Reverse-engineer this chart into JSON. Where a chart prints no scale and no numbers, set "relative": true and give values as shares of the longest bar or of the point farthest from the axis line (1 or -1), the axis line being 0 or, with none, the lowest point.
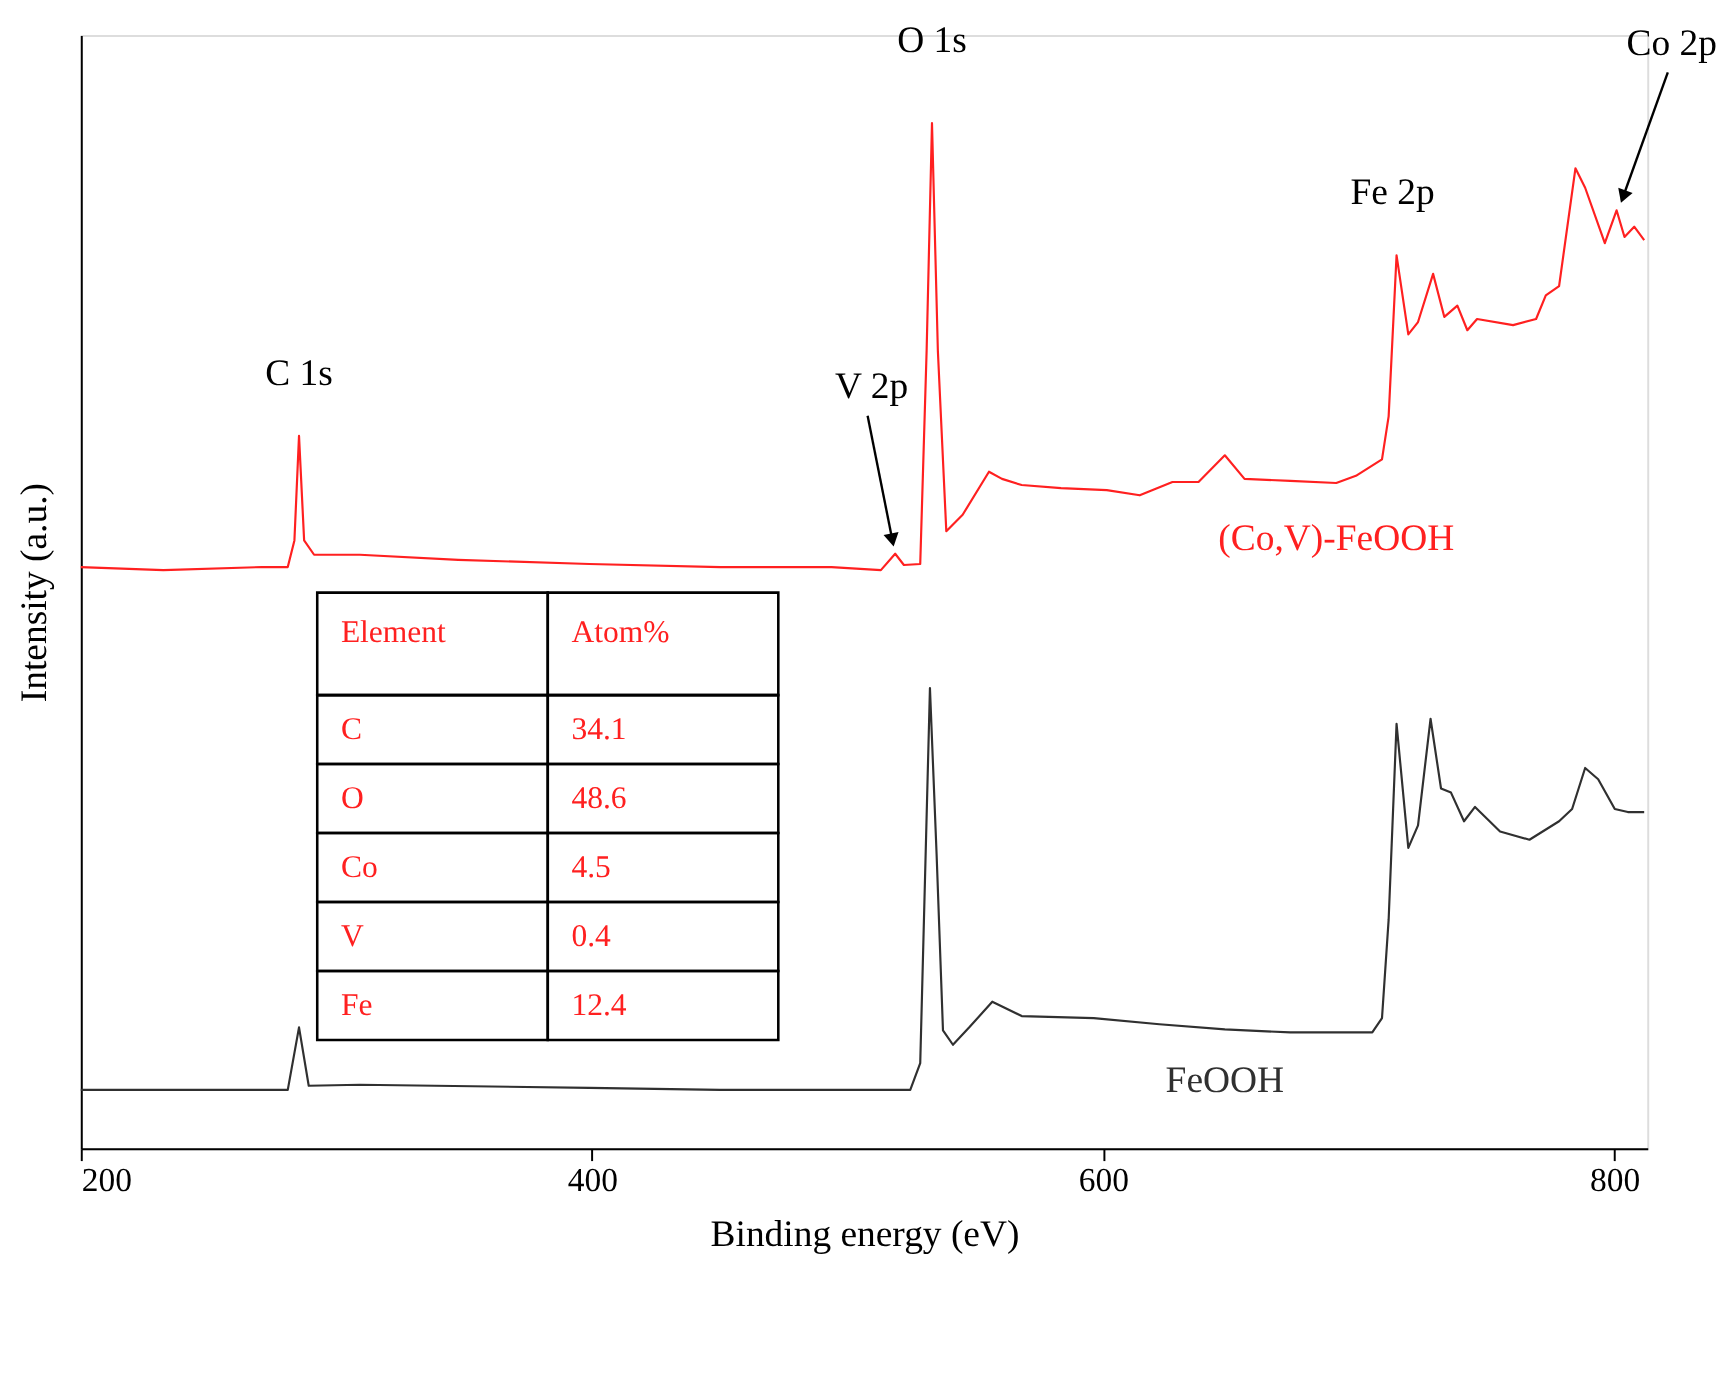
{
  "chart_data": {
    "type": "line",
    "relative": true,
    "xlabel": "Binding energy (eV)",
    "ylabel": "Intensity (a.u.)",
    "xlim": [
      200,
      813
    ],
    "xticks": [
      200,
      400,
      600,
      800
    ],
    "grid": false,
    "legend": false,
    "marker": "none",
    "line_style": "solid",
    "series": [
      {
        "name": "(Co,V)-FeOOH",
        "color": "#ff2020",
        "x": [
          200,
          232.3,
          270.8,
          281,
          283.6,
          285.4,
          287.4,
          291.3,
          309.2,
          347.7,
          399,
          450.3,
          493.8,
          513.1,
          518.7,
          522.1,
          528.5,
          531.0,
          533.1,
          535.4,
          538.7,
          545.1,
          555.4,
          560.5,
          568.2,
          583.6,
          601.5,
          614.4,
          627.2,
          637.4,
          647.7,
          655.4,
          673.3,
          691.3,
          699.0,
          709.2,
          711.8,
          714.9,
          719.5,
          723.3,
          729.2,
          733.6,
          738.7,
          742.6,
          746.4,
          760.5,
          769.5,
          773.3,
          778.5,
          784.9,
          788.7,
          796.4,
          801.0,
          804.1,
          807.9,
          811.8
        ],
        "values": [
          0.567,
          0.564,
          0.567,
          0.567,
          0.593,
          0.695,
          0.593,
          0.579,
          0.579,
          0.574,
          0.57,
          0.567,
          0.567,
          0.564,
          0.58,
          0.569,
          0.57,
          0.778,
          1.0,
          0.778,
          0.602,
          0.618,
          0.66,
          0.653,
          0.647,
          0.644,
          0.642,
          0.637,
          0.65,
          0.65,
          0.676,
          0.653,
          0.651,
          0.649,
          0.656,
          0.672,
          0.714,
          0.871,
          0.794,
          0.806,
          0.853,
          0.811,
          0.822,
          0.798,
          0.809,
          0.803,
          0.809,
          0.832,
          0.841,
          0.956,
          0.937,
          0.883,
          0.915,
          0.889,
          0.899,
          0.886
        ]
      },
      {
        "name": "FeOOH",
        "color": "#303030",
        "x": [
          200,
          281,
          285.4,
          289.2,
          309.2,
          399,
          450,
          493.8,
          524.6,
          528.5,
          532.3,
          534.9,
          537.4,
          541.3,
          547.7,
          556.7,
          568.2,
          596.4,
          622.1,
          647.7,
          673.3,
          705.4,
          709.2,
          711.8,
          714.9,
          719.5,
          723.3,
          728.2,
          732.3,
          736.2,
          741.3,
          745.6,
          755.4,
          766.9,
          778.5,
          783.6,
          788.7,
          793.8,
          800.3,
          805.4,
          811.8
        ],
        "values": [
          0.057,
          0.057,
          0.118,
          0.061,
          0.062,
          0.059,
          0.057,
          0.057,
          0.057,
          0.083,
          0.449,
          0.287,
          0.115,
          0.101,
          0.118,
          0.143,
          0.129,
          0.127,
          0.121,
          0.116,
          0.113,
          0.113,
          0.127,
          0.223,
          0.414,
          0.293,
          0.315,
          0.419,
          0.351,
          0.347,
          0.319,
          0.333,
          0.309,
          0.301,
          0.319,
          0.331,
          0.371,
          0.36,
          0.331,
          0.328,
          0.328
        ]
      }
    ],
    "annotations": [
      {
        "text": "C 1s",
        "x": 285.4,
        "y": 0.695
      },
      {
        "text": "V 2p",
        "x": 518.7,
        "y": 0.58
      },
      {
        "text": "O 1s",
        "x": 533.1,
        "y": 1.0
      },
      {
        "text": "Fe 2p",
        "x": 714.9,
        "y": 0.871
      },
      {
        "text": "Co 2p",
        "x": 801.0,
        "y": 0.915
      },
      "Element",
      "Atom%",
      "C",
      "34.1",
      "O",
      "48.6",
      "Co",
      "4.5",
      "V",
      "0.4",
      "Fe",
      "12.4"
    ]
  }
}
